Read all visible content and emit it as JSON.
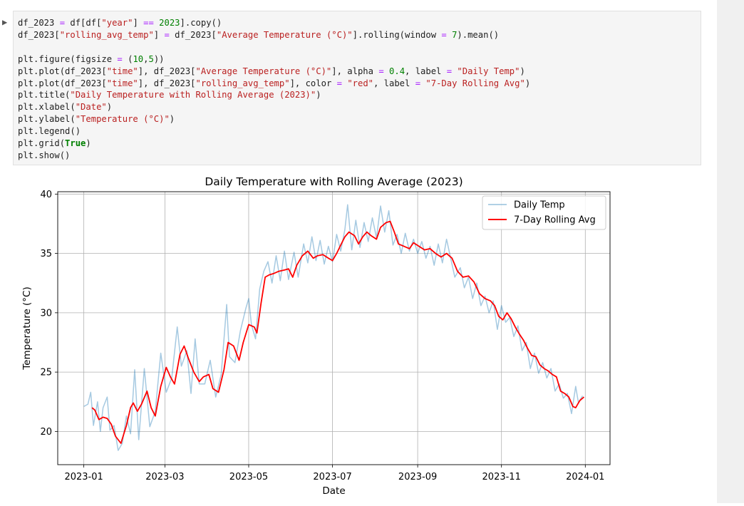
{
  "notebook": {
    "collapse_glyph": "▶",
    "cell_code": "df_2023 = df[df[\"year\"] == 2023].copy()\ndf_2023[\"rolling_avg_temp\"] = df_2023[\"Average Temperature (°C)\"].rolling(window = 7).mean()\n\nplt.figure(figsize = (10,5))\nplt.plot(df_2023[\"time\"], df_2023[\"Average Temperature (°C)\"], alpha = 0.4, label = \"Daily Temp\")\nplt.plot(df_2023[\"time\"], df_2023[\"rolling_avg_temp\"], color = \"red\", label = \"7-Day Rolling Avg\")\nplt.title(\"Daily Temperature with Rolling Average (2023)\")\nplt.xlabel(\"Date\")\nplt.ylabel(\"Temperature (°C)\")\nplt.legend()\nplt.grid(True)\nplt.show()"
  },
  "chart_data": {
    "type": "line",
    "title": "Daily Temperature with Rolling Average (2023)",
    "xlabel": "Date",
    "ylabel": "Temperature (°C)",
    "xlim": [
      "2022-12-13",
      "2024-01-19"
    ],
    "ylim": [
      17.2,
      40.2
    ],
    "x_ticks": [
      "2023-01",
      "2023-03",
      "2023-05",
      "2023-07",
      "2023-09",
      "2023-11",
      "2024-01"
    ],
    "y_ticks": [
      20,
      25,
      30,
      35,
      40
    ],
    "grid": true,
    "legend_position": "top-right",
    "series": [
      {
        "name": "Daily Temp",
        "color": "#1f77b4",
        "alpha": 0.4,
        "points": [
          [
            "2023-01-01",
            22.1
          ],
          [
            "2023-01-04",
            22.3
          ],
          [
            "2023-01-06",
            23.3
          ],
          [
            "2023-01-08",
            20.5
          ],
          [
            "2023-01-11",
            22.5
          ],
          [
            "2023-01-13",
            20.0
          ],
          [
            "2023-01-15",
            22.0
          ],
          [
            "2023-01-18",
            22.9
          ],
          [
            "2023-01-20",
            20.1
          ],
          [
            "2023-01-23",
            20.5
          ],
          [
            "2023-01-26",
            18.4
          ],
          [
            "2023-01-29",
            19.0
          ],
          [
            "2023-02-01",
            21.3
          ],
          [
            "2023-02-04",
            19.8
          ],
          [
            "2023-02-07",
            25.2
          ],
          [
            "2023-02-10",
            19.3
          ],
          [
            "2023-02-14",
            25.3
          ],
          [
            "2023-02-18",
            20.4
          ],
          [
            "2023-02-22",
            21.7
          ],
          [
            "2023-02-26",
            26.6
          ],
          [
            "2023-03-02",
            23.3
          ],
          [
            "2023-03-06",
            24.5
          ],
          [
            "2023-03-10",
            28.8
          ],
          [
            "2023-03-13",
            25.5
          ],
          [
            "2023-03-17",
            26.8
          ],
          [
            "2023-03-20",
            23.2
          ],
          [
            "2023-03-23",
            27.8
          ],
          [
            "2023-03-26",
            24.0
          ],
          [
            "2023-03-30",
            24.0
          ],
          [
            "2023-04-03",
            26.0
          ],
          [
            "2023-04-07",
            22.9
          ],
          [
            "2023-04-11",
            24.8
          ],
          [
            "2023-04-15",
            30.7
          ],
          [
            "2023-04-17",
            26.3
          ],
          [
            "2023-04-21",
            25.8
          ],
          [
            "2023-04-25",
            28.5
          ],
          [
            "2023-04-29",
            30.4
          ],
          [
            "2023-05-01",
            31.2
          ],
          [
            "2023-05-03",
            29.0
          ],
          [
            "2023-05-06",
            27.8
          ],
          [
            "2023-05-09",
            32.0
          ],
          [
            "2023-05-12",
            33.5
          ],
          [
            "2023-05-15",
            34.3
          ],
          [
            "2023-05-18",
            32.5
          ],
          [
            "2023-05-21",
            34.8
          ],
          [
            "2023-05-24",
            32.7
          ],
          [
            "2023-05-27",
            35.2
          ],
          [
            "2023-05-30",
            32.8
          ],
          [
            "2023-06-03",
            35.1
          ],
          [
            "2023-06-06",
            33.0
          ],
          [
            "2023-06-10",
            35.8
          ],
          [
            "2023-06-13",
            34.2
          ],
          [
            "2023-06-16",
            36.4
          ],
          [
            "2023-06-19",
            34.4
          ],
          [
            "2023-06-22",
            36.1
          ],
          [
            "2023-06-25",
            34.1
          ],
          [
            "2023-06-28",
            35.6
          ],
          [
            "2023-07-01",
            34.3
          ],
          [
            "2023-07-04",
            36.6
          ],
          [
            "2023-07-07",
            35.2
          ],
          [
            "2023-07-10",
            37.0
          ],
          [
            "2023-07-12",
            39.1
          ],
          [
            "2023-07-15",
            35.3
          ],
          [
            "2023-07-18",
            37.8
          ],
          [
            "2023-07-21",
            35.5
          ],
          [
            "2023-07-24",
            37.6
          ],
          [
            "2023-07-27",
            36.0
          ],
          [
            "2023-07-30",
            38.0
          ],
          [
            "2023-08-02",
            36.3
          ],
          [
            "2023-08-05",
            39.0
          ],
          [
            "2023-08-08",
            36.8
          ],
          [
            "2023-08-11",
            38.6
          ],
          [
            "2023-08-14",
            35.7
          ],
          [
            "2023-08-17",
            36.6
          ],
          [
            "2023-08-20",
            35.0
          ],
          [
            "2023-08-23",
            36.7
          ],
          [
            "2023-08-26",
            35.2
          ],
          [
            "2023-08-29",
            36.2
          ],
          [
            "2023-09-01",
            35.0
          ],
          [
            "2023-09-04",
            36.0
          ],
          [
            "2023-09-07",
            34.6
          ],
          [
            "2023-09-10",
            35.6
          ],
          [
            "2023-09-13",
            34.0
          ],
          [
            "2023-09-16",
            35.8
          ],
          [
            "2023-09-19",
            34.2
          ],
          [
            "2023-09-22",
            36.2
          ],
          [
            "2023-09-25",
            34.6
          ],
          [
            "2023-09-28",
            33.0
          ],
          [
            "2023-10-02",
            33.8
          ],
          [
            "2023-10-05",
            32.1
          ],
          [
            "2023-10-08",
            33.0
          ],
          [
            "2023-10-11",
            31.2
          ],
          [
            "2023-10-14",
            32.5
          ],
          [
            "2023-10-17",
            30.6
          ],
          [
            "2023-10-20",
            31.4
          ],
          [
            "2023-10-23",
            30.0
          ],
          [
            "2023-10-26",
            31.0
          ],
          [
            "2023-10-29",
            28.6
          ],
          [
            "2023-11-01",
            30.6
          ],
          [
            "2023-11-04",
            29.2
          ],
          [
            "2023-11-07",
            29.6
          ],
          [
            "2023-11-10",
            28.0
          ],
          [
            "2023-11-13",
            28.9
          ],
          [
            "2023-11-16",
            26.8
          ],
          [
            "2023-11-19",
            27.5
          ],
          [
            "2023-11-22",
            25.3
          ],
          [
            "2023-11-25",
            26.6
          ],
          [
            "2023-11-28",
            24.9
          ],
          [
            "2023-12-01",
            25.8
          ],
          [
            "2023-12-04",
            24.5
          ],
          [
            "2023-12-07",
            25.3
          ],
          [
            "2023-12-10",
            23.4
          ],
          [
            "2023-12-13",
            24.0
          ],
          [
            "2023-12-16",
            22.8
          ],
          [
            "2023-12-19",
            23.2
          ],
          [
            "2023-12-22",
            21.5
          ],
          [
            "2023-12-25",
            23.8
          ],
          [
            "2023-12-27",
            22.4
          ],
          [
            "2023-12-30",
            23.0
          ]
        ]
      },
      {
        "name": "7-Day Rolling Avg",
        "color": "#ff0000",
        "alpha": 1,
        "points": [
          [
            "2023-01-07",
            22.0
          ],
          [
            "2023-01-09",
            21.8
          ],
          [
            "2023-01-12",
            21.0
          ],
          [
            "2023-01-15",
            21.2
          ],
          [
            "2023-01-18",
            21.1
          ],
          [
            "2023-01-21",
            20.6
          ],
          [
            "2023-01-24",
            19.6
          ],
          [
            "2023-01-28",
            19.0
          ],
          [
            "2023-02-01",
            20.5
          ],
          [
            "2023-02-04",
            22.0
          ],
          [
            "2023-02-06",
            22.4
          ],
          [
            "2023-02-09",
            21.7
          ],
          [
            "2023-02-12",
            22.3
          ],
          [
            "2023-02-16",
            23.4
          ],
          [
            "2023-02-19",
            22.0
          ],
          [
            "2023-02-22",
            21.3
          ],
          [
            "2023-02-26",
            23.8
          ],
          [
            "2023-03-02",
            25.4
          ],
          [
            "2023-03-05",
            24.6
          ],
          [
            "2023-03-08",
            24.0
          ],
          [
            "2023-03-12",
            26.5
          ],
          [
            "2023-03-15",
            27.2
          ],
          [
            "2023-03-18",
            26.2
          ],
          [
            "2023-03-22",
            25.0
          ],
          [
            "2023-03-26",
            24.2
          ],
          [
            "2023-03-29",
            24.6
          ],
          [
            "2023-04-02",
            24.8
          ],
          [
            "2023-04-05",
            23.6
          ],
          [
            "2023-04-09",
            23.3
          ],
          [
            "2023-04-13",
            25.2
          ],
          [
            "2023-04-16",
            27.5
          ],
          [
            "2023-04-20",
            27.2
          ],
          [
            "2023-04-24",
            26.0
          ],
          [
            "2023-04-27",
            27.5
          ],
          [
            "2023-05-01",
            29.0
          ],
          [
            "2023-05-05",
            28.8
          ],
          [
            "2023-05-07",
            28.3
          ],
          [
            "2023-05-10",
            30.8
          ],
          [
            "2023-05-13",
            33.0
          ],
          [
            "2023-05-16",
            33.2
          ],
          [
            "2023-05-19",
            33.3
          ],
          [
            "2023-05-23",
            33.5
          ],
          [
            "2023-05-27",
            33.6
          ],
          [
            "2023-05-30",
            33.7
          ],
          [
            "2023-06-02",
            33.0
          ],
          [
            "2023-06-05",
            34.0
          ],
          [
            "2023-06-09",
            34.8
          ],
          [
            "2023-06-13",
            35.2
          ],
          [
            "2023-06-17",
            34.6
          ],
          [
            "2023-06-20",
            34.8
          ],
          [
            "2023-06-24",
            34.9
          ],
          [
            "2023-06-28",
            34.6
          ],
          [
            "2023-07-01",
            34.4
          ],
          [
            "2023-07-04",
            35.0
          ],
          [
            "2023-07-07",
            35.7
          ],
          [
            "2023-07-10",
            36.4
          ],
          [
            "2023-07-13",
            36.8
          ],
          [
            "2023-07-17",
            36.5
          ],
          [
            "2023-07-20",
            35.8
          ],
          [
            "2023-07-23",
            36.4
          ],
          [
            "2023-07-26",
            36.8
          ],
          [
            "2023-07-29",
            36.5
          ],
          [
            "2023-08-02",
            36.2
          ],
          [
            "2023-08-05",
            37.2
          ],
          [
            "2023-08-09",
            37.6
          ],
          [
            "2023-08-12",
            37.7
          ],
          [
            "2023-08-15",
            36.8
          ],
          [
            "2023-08-18",
            35.8
          ],
          [
            "2023-08-22",
            35.6
          ],
          [
            "2023-08-26",
            35.4
          ],
          [
            "2023-08-29",
            35.9
          ],
          [
            "2023-09-02",
            35.6
          ],
          [
            "2023-09-06",
            35.3
          ],
          [
            "2023-09-10",
            35.4
          ],
          [
            "2023-09-14",
            35.0
          ],
          [
            "2023-09-18",
            34.7
          ],
          [
            "2023-09-22",
            35.0
          ],
          [
            "2023-09-26",
            34.6
          ],
          [
            "2023-09-30",
            33.5
          ],
          [
            "2023-10-04",
            33.0
          ],
          [
            "2023-10-08",
            33.1
          ],
          [
            "2023-10-12",
            32.6
          ],
          [
            "2023-10-16",
            31.6
          ],
          [
            "2023-10-20",
            31.2
          ],
          [
            "2023-10-24",
            31.0
          ],
          [
            "2023-10-27",
            30.6
          ],
          [
            "2023-10-30",
            29.7
          ],
          [
            "2023-11-02",
            29.4
          ],
          [
            "2023-11-05",
            30.0
          ],
          [
            "2023-11-08",
            29.5
          ],
          [
            "2023-11-11",
            28.8
          ],
          [
            "2023-11-14",
            28.2
          ],
          [
            "2023-11-17",
            27.7
          ],
          [
            "2023-11-20",
            27.0
          ],
          [
            "2023-11-23",
            26.4
          ],
          [
            "2023-11-26",
            26.3
          ],
          [
            "2023-11-29",
            25.6
          ],
          [
            "2023-12-02",
            25.3
          ],
          [
            "2023-12-05",
            25.1
          ],
          [
            "2023-12-08",
            24.8
          ],
          [
            "2023-12-11",
            24.6
          ],
          [
            "2023-12-14",
            23.4
          ],
          [
            "2023-12-17",
            23.2
          ],
          [
            "2023-12-20",
            22.9
          ],
          [
            "2023-12-23",
            22.1
          ],
          [
            "2023-12-25",
            22.0
          ],
          [
            "2023-12-28",
            22.6
          ],
          [
            "2023-12-31",
            22.9
          ]
        ]
      }
    ]
  }
}
